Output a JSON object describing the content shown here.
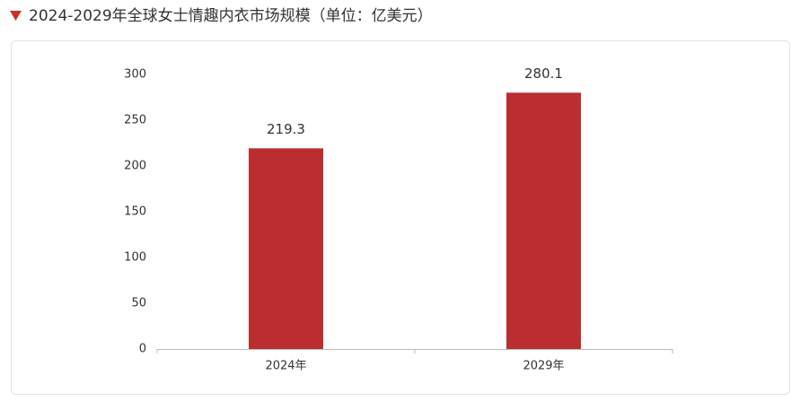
{
  "chart_data": {
    "type": "bar",
    "title": "2024-2029年全球女士情趣内衣市场规模（单位：亿美元）",
    "categories": [
      "2024年",
      "2029年"
    ],
    "values": [
      219.3,
      280.1
    ],
    "color": "#bb2e2f",
    "ylim": [
      0,
      300
    ],
    "yticks": [
      0,
      50,
      100,
      150,
      200,
      250,
      300
    ],
    "grid": false
  }
}
